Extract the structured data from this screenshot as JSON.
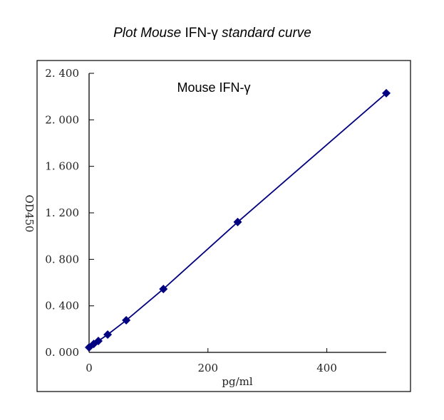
{
  "chart_data": {
    "type": "line",
    "title_parts": [
      {
        "text": "Plot Mouse ",
        "italic": true
      },
      {
        "text": "IFN-γ",
        "italic": false
      },
      {
        "text": " standard curve",
        "italic": true
      }
    ],
    "annotation": "Mouse IFN-γ",
    "xlabel": "pg/ml",
    "ylabel": "OD450",
    "xlim": [
      0,
      500
    ],
    "ylim": [
      0,
      2.4
    ],
    "xticks": [
      0,
      200,
      400
    ],
    "xtick_labels": [
      "0",
      "200",
      "400"
    ],
    "yticks": [
      0,
      0.4,
      0.8,
      1.2,
      1.6,
      2.0,
      2.4
    ],
    "ytick_labels": [
      "0.000",
      "0.400",
      "0.800",
      "1.200",
      "1.600",
      "2.000",
      "2.400"
    ],
    "grid": false,
    "series": [
      {
        "x": [
          0,
          7.8,
          15.6,
          31.25,
          62.5,
          125,
          250,
          500
        ],
        "y": [
          0.043,
          0.073,
          0.098,
          0.153,
          0.276,
          0.545,
          1.121,
          2.229
        ],
        "color": "#000080",
        "marker": "diamond"
      }
    ]
  }
}
